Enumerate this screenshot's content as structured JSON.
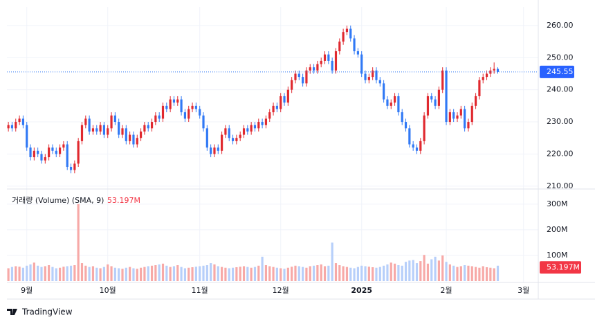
{
  "chart_data": {
    "type": "candlestick",
    "open": [
      228,
      229,
      228,
      230,
      231,
      229,
      222,
      219,
      221,
      220,
      218,
      219,
      222,
      221,
      220,
      222,
      223,
      216,
      215,
      217,
      224,
      229,
      231,
      227,
      228,
      227,
      229,
      226,
      228,
      232,
      230,
      226,
      228,
      224,
      226,
      223,
      225,
      227,
      229,
      228,
      230,
      232,
      231,
      235,
      234,
      237,
      236,
      237,
      233,
      231,
      234,
      235,
      234,
      232,
      228,
      222,
      220,
      222,
      221,
      226,
      228,
      225,
      224,
      225,
      226,
      228,
      227,
      229,
      228,
      230,
      229,
      231,
      233,
      235,
      234,
      238,
      236,
      240,
      243,
      245,
      244,
      242,
      246,
      247,
      246,
      248,
      249,
      251,
      249,
      246,
      252,
      255,
      258,
      259,
      256,
      252,
      251,
      245,
      243,
      244,
      246,
      243,
      242,
      237,
      235,
      236,
      238,
      233,
      230,
      228,
      223,
      222,
      221,
      224,
      232,
      238,
      237,
      235,
      240,
      246,
      230,
      233,
      231,
      232,
      234,
      228,
      230,
      235,
      238,
      243,
      244,
      245,
      246,
      246.5
    ],
    "high": [
      230,
      230,
      231,
      232,
      232,
      230,
      223,
      222,
      222,
      221,
      220,
      223,
      223,
      222,
      223,
      224,
      224,
      217,
      218,
      225,
      230,
      232,
      232,
      229,
      229,
      230,
      230,
      229,
      233,
      233,
      231,
      229,
      229,
      227,
      227,
      226,
      228,
      230,
      230,
      231,
      233,
      233,
      236,
      236,
      238,
      238,
      238,
      238,
      234,
      235,
      236,
      236,
      235,
      233,
      229,
      223,
      223,
      223,
      227,
      229,
      229,
      226,
      226,
      227,
      229,
      229,
      230,
      230,
      231,
      231,
      232,
      234,
      236,
      236,
      239,
      239,
      241,
      244,
      246,
      246,
      245,
      247,
      248,
      248,
      249,
      250,
      252,
      252,
      250,
      253,
      256,
      259,
      260,
      260,
      257,
      253,
      252,
      246,
      245,
      247,
      247,
      244,
      243,
      238,
      237,
      239,
      239,
      234,
      231,
      229,
      224,
      223,
      225,
      233,
      239,
      239,
      238,
      241,
      247,
      247,
      234,
      234,
      233,
      235,
      235,
      231,
      236,
      239,
      244,
      245,
      246,
      247,
      248.5,
      247
    ],
    "low": [
      227,
      227,
      227,
      229,
      228,
      221,
      218,
      218,
      219,
      217,
      217,
      218,
      220,
      219,
      219,
      221,
      215,
      214,
      214,
      216,
      223,
      228,
      226,
      226,
      226,
      226,
      225,
      225,
      227,
      229,
      225,
      225,
      223,
      223,
      222,
      222,
      224,
      226,
      227,
      227,
      229,
      230,
      230,
      233,
      233,
      235,
      235,
      232,
      230,
      230,
      233,
      233,
      231,
      227,
      221,
      219,
      219,
      220,
      220,
      225,
      224,
      223,
      223,
      224,
      225,
      226,
      226,
      227,
      227,
      228,
      228,
      230,
      232,
      233,
      233,
      235,
      235,
      239,
      242,
      243,
      241,
      241,
      245,
      245,
      245,
      247,
      248,
      248,
      245,
      245,
      251,
      254,
      257,
      255,
      251,
      250,
      244,
      242,
      242,
      243,
      242,
      241,
      236,
      234,
      234,
      235,
      232,
      229,
      227,
      222,
      221,
      220,
      220,
      223,
      231,
      236,
      234,
      234,
      239,
      229,
      229,
      230,
      230,
      231,
      227,
      227,
      229,
      234,
      237,
      242,
      243,
      244,
      245,
      245
    ],
    "close": [
      229,
      228,
      230,
      231,
      229,
      222,
      219,
      221,
      220,
      218,
      219,
      222,
      221,
      220,
      222,
      223,
      216,
      215,
      217,
      224,
      229,
      231,
      227,
      228,
      227,
      229,
      226,
      228,
      232,
      230,
      226,
      228,
      224,
      226,
      223,
      225,
      227,
      229,
      228,
      230,
      232,
      231,
      235,
      234,
      237,
      236,
      237,
      233,
      231,
      234,
      235,
      234,
      232,
      228,
      222,
      220,
      222,
      221,
      226,
      228,
      225,
      224,
      225,
      226,
      228,
      227,
      229,
      228,
      230,
      229,
      231,
      233,
      235,
      234,
      238,
      236,
      240,
      243,
      245,
      244,
      242,
      246,
      247,
      246,
      248,
      249,
      251,
      249,
      246,
      252,
      255,
      258,
      259,
      256,
      252,
      251,
      245,
      243,
      244,
      246,
      243,
      242,
      237,
      235,
      236,
      238,
      233,
      230,
      228,
      223,
      222,
      221,
      224,
      232,
      238,
      237,
      235,
      240,
      246,
      230,
      233,
      231,
      232,
      234,
      228,
      230,
      235,
      238,
      243,
      244,
      245,
      246,
      246.5,
      245.55
    ],
    "volume": [
      50,
      55,
      58,
      56,
      52,
      60,
      65,
      72,
      60,
      55,
      58,
      62,
      55,
      50,
      52,
      56,
      58,
      60,
      62,
      300,
      70,
      60,
      55,
      58,
      52,
      50,
      55,
      65,
      58,
      52,
      50,
      48,
      52,
      55,
      50,
      48,
      52,
      55,
      58,
      60,
      62,
      65,
      68,
      60,
      55,
      58,
      62,
      55,
      50,
      52,
      54,
      56,
      58,
      60,
      62,
      70,
      65,
      58,
      55,
      52,
      50,
      52,
      54,
      56,
      58,
      55,
      52,
      55,
      60,
      95,
      62,
      58,
      55,
      52,
      50,
      48,
      52,
      56,
      60,
      58,
      55,
      52,
      58,
      60,
      62,
      65,
      58,
      60,
      150,
      70,
      62,
      58,
      55,
      52,
      50,
      55,
      60,
      58,
      56,
      54,
      52,
      55,
      60,
      65,
      72,
      68,
      62,
      60,
      75,
      80,
      82,
      70,
      78,
      102,
      68,
      85,
      95,
      80,
      100,
      75,
      65,
      60,
      55,
      58,
      62,
      60,
      58,
      55,
      52,
      58,
      54,
      52,
      50,
      60
    ],
    "xlim": [
      -0.4,
      144
    ],
    "xticks": [
      {
        "value": 5,
        "label": "9월"
      },
      {
        "value": 27,
        "label": "10월"
      },
      {
        "value": 52,
        "label": "11월"
      },
      {
        "value": 74,
        "label": "12월"
      },
      {
        "value": 96,
        "label": "2025"
      },
      {
        "value": 119,
        "label": "2월"
      },
      {
        "value": 140,
        "label": "3월"
      }
    ],
    "ylim": [
      209.1,
      265.8
    ],
    "yticks": [
      {
        "value": 210,
        "label": "210.00"
      },
      {
        "value": 220,
        "label": "220.00"
      },
      {
        "value": 230,
        "label": "230.00"
      },
      {
        "value": 240,
        "label": "240.00"
      },
      {
        "value": 250,
        "label": "250.00"
      },
      {
        "value": 260,
        "label": "260.00"
      }
    ],
    "y2lim": [
      0,
      359
    ],
    "y2ticks": [
      {
        "value": 100,
        "label": "100M"
      },
      {
        "value": 200,
        "label": "200M"
      },
      {
        "value": 300,
        "label": "300M"
      }
    ],
    "volume_legend": "거래량 (Volume) (SMA, 9)",
    "volume_sma": 53.197,
    "volume_sma_label": "53.197M",
    "up_color": "#e0292f",
    "down_color": "#3179f5",
    "up_volume_color": "#f7a9a7",
    "down_volume_color": "#b7cffa",
    "grid": true,
    "brand": "TradingView"
  }
}
